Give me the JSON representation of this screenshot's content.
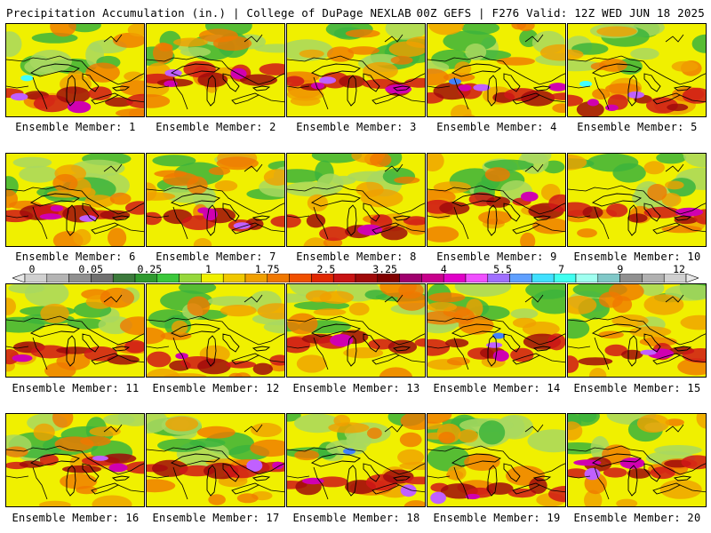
{
  "header": {
    "left": "Precipitation Accumulation (in.) | College of DuPage NEXLAB",
    "right": "00Z GEFS | F276 Valid: 12Z WED JUN 18 2025"
  },
  "colorbar": {
    "ticks": [
      "0",
      "0.05",
      "0.25",
      "1",
      "1.75",
      "2.5",
      "3.25",
      "4",
      "5.5",
      "7",
      "9",
      "12"
    ],
    "colors": [
      "#d0d0d0",
      "#b4b4b4",
      "#909090",
      "#707070",
      "#3c7a3c",
      "#2f9a2f",
      "#3cc83c",
      "#96d83c",
      "#f0f000",
      "#f0c800",
      "#f0a000",
      "#f07800",
      "#f05000",
      "#e02800",
      "#c81414",
      "#a00a0a",
      "#800000",
      "#a0006e",
      "#c8008c",
      "#e000c8",
      "#f050ff",
      "#a070ff",
      "#60a0ff",
      "#40e0ff",
      "#40fff0",
      "#a0fff0",
      "#80c8c8",
      "#909090",
      "#b0b0b0",
      "#d0d0d0"
    ]
  },
  "map_palette": {
    "light_green": "#a8d860",
    "green": "#3cb43c",
    "yellow": "#f0f000",
    "orange": "#f0a000",
    "dark_orange": "#f07800",
    "red": "#d01818",
    "dark_red": "#a00a0a",
    "magenta": "#d000b0",
    "violet": "#c060ff",
    "blue": "#4080ff",
    "cyan": "#40ffff"
  },
  "panels": [
    {
      "label": "Ensemble Member: 1"
    },
    {
      "label": "Ensemble Member: 2"
    },
    {
      "label": "Ensemble Member: 3"
    },
    {
      "label": "Ensemble Member: 4"
    },
    {
      "label": "Ensemble Member: 5"
    },
    {
      "label": "Ensemble Member: 6"
    },
    {
      "label": "Ensemble Member: 7"
    },
    {
      "label": "Ensemble Member: 8"
    },
    {
      "label": "Ensemble Member: 9"
    },
    {
      "label": "Ensemble Member: 10"
    },
    {
      "label": "Ensemble Member: 11"
    },
    {
      "label": "Ensemble Member: 12"
    },
    {
      "label": "Ensemble Member: 13"
    },
    {
      "label": "Ensemble Member: 14"
    },
    {
      "label": "Ensemble Member: 15"
    },
    {
      "label": "Ensemble Member: 16"
    },
    {
      "label": "Ensemble Member: 17"
    },
    {
      "label": "Ensemble Member: 18"
    },
    {
      "label": "Ensemble Member: 19"
    },
    {
      "label": "Ensemble Member: 20"
    }
  ]
}
